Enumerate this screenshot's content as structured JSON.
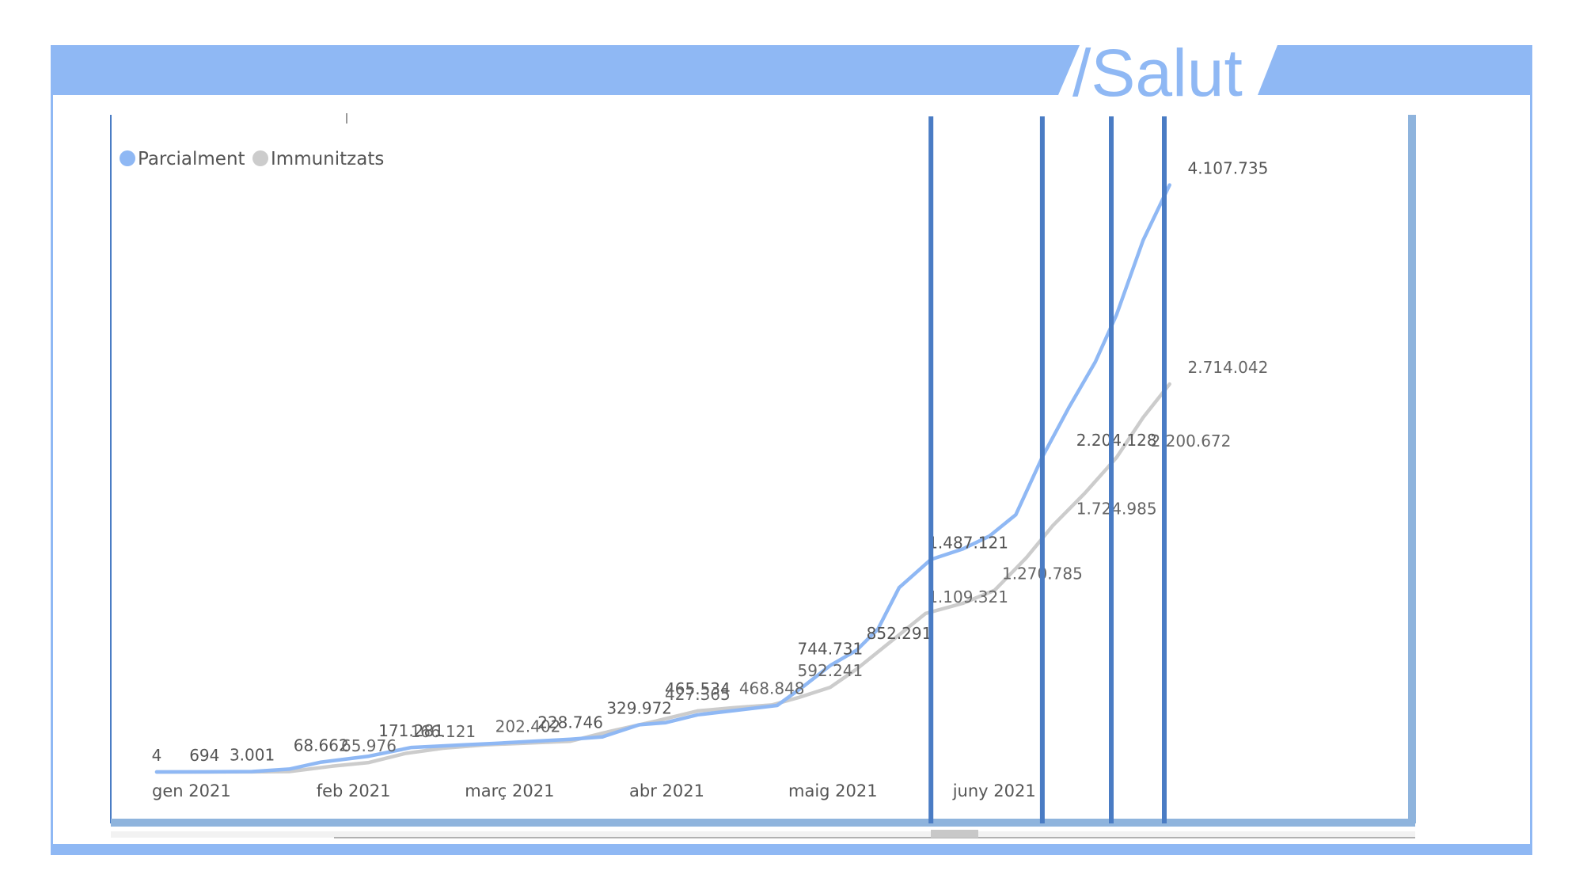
{
  "brand": {
    "text": "/Salut",
    "color": "#8fb8f4"
  },
  "chart_data": {
    "type": "line",
    "title": "",
    "xlabel": "",
    "ylabel": "",
    "x_ticks": [
      "gen 2021",
      "feb 2021",
      "març 2021",
      "abr 2021",
      "maig 2021",
      "juny 2021"
    ],
    "x_tick_dates": [
      "2021-01-01",
      "2021-02-01",
      "2021-03-01",
      "2021-04-01",
      "2021-05-01",
      "2021-06-01"
    ],
    "ylim": [
      0,
      4700000
    ],
    "grid": false,
    "legend": {
      "position": "top-left",
      "entries": [
        {
          "label": "Parcialment",
          "color": "#8fb8f4"
        },
        {
          "label": "Immunitzats",
          "color": "#cccccc"
        }
      ]
    },
    "series": [
      {
        "name": "Parcialment",
        "color": "#8fb8f4",
        "points": [
          [
            "2021-01-01",
            4
          ],
          [
            "2021-01-10",
            694
          ],
          [
            "2021-01-19",
            3001
          ],
          [
            "2021-01-26",
            20000
          ],
          [
            "2021-02-01",
            68662
          ],
          [
            "2021-02-10",
            110000
          ],
          [
            "2021-02-18",
            171281
          ],
          [
            "2021-02-28",
            190000
          ],
          [
            "2021-03-06",
            200000
          ],
          [
            "2021-03-13",
            215000
          ],
          [
            "2021-03-20",
            228746
          ],
          [
            "2021-03-26",
            245000
          ],
          [
            "2021-04-02",
            329972
          ],
          [
            "2021-04-07",
            345000
          ],
          [
            "2021-04-13",
            400000
          ],
          [
            "2021-04-20",
            430000
          ],
          [
            "2021-04-28",
            465534
          ],
          [
            "2021-05-03",
            600000
          ],
          [
            "2021-05-08",
            744731
          ],
          [
            "2021-05-13",
            852291
          ],
          [
            "2021-05-17",
            1000000
          ],
          [
            "2021-05-21",
            1290000
          ],
          [
            "2021-05-27",
            1487121
          ],
          [
            "2021-06-02",
            1560000
          ],
          [
            "2021-06-07",
            1650000
          ],
          [
            "2021-06-12",
            1800000
          ],
          [
            "2021-06-17",
            2204128
          ],
          [
            "2021-06-22",
            2550000
          ],
          [
            "2021-06-27",
            2870000
          ],
          [
            "2021-07-01",
            3200000
          ],
          [
            "2021-07-06",
            3720000
          ],
          [
            "2021-07-11",
            4107735
          ]
        ]
      },
      {
        "name": "Immunitzats",
        "color": "#cccccc",
        "points": [
          [
            "2021-01-01",
            4
          ],
          [
            "2021-01-19",
            694
          ],
          [
            "2021-01-26",
            3001
          ],
          [
            "2021-02-03",
            40000
          ],
          [
            "2021-02-10",
            65976
          ],
          [
            "2021-02-17",
            130000
          ],
          [
            "2021-02-24",
            166121
          ],
          [
            "2021-03-04",
            190000
          ],
          [
            "2021-03-12",
            202402
          ],
          [
            "2021-03-20",
            215000
          ],
          [
            "2021-03-27",
            280000
          ],
          [
            "2021-04-05",
            355000
          ],
          [
            "2021-04-13",
            427365
          ],
          [
            "2021-04-20",
            450000
          ],
          [
            "2021-04-27",
            468848
          ],
          [
            "2021-05-02",
            520000
          ],
          [
            "2021-05-08",
            592241
          ],
          [
            "2021-05-13",
            720000
          ],
          [
            "2021-05-19",
            900000
          ],
          [
            "2021-05-26",
            1109321
          ],
          [
            "2021-06-02",
            1180000
          ],
          [
            "2021-06-08",
            1270785
          ],
          [
            "2021-06-14",
            1500000
          ],
          [
            "2021-06-19",
            1724985
          ],
          [
            "2021-06-25",
            1950000
          ],
          [
            "2021-07-01",
            2200672
          ],
          [
            "2021-07-06",
            2480000
          ],
          [
            "2021-07-11",
            2714042
          ]
        ]
      }
    ],
    "data_labels": [
      {
        "series": "Parcialment",
        "x": "2021-01-01",
        "y": 4,
        "text": "4"
      },
      {
        "series": "Parcialment",
        "x": "2021-01-10",
        "y": 694,
        "text": "694"
      },
      {
        "series": "Parcialment",
        "x": "2021-01-19",
        "y": 3001,
        "text": "3.001"
      },
      {
        "series": "Parcialment",
        "x": "2021-02-01",
        "y": 68662,
        "text": "68.662"
      },
      {
        "series": "Immunitzats",
        "x": "2021-02-10",
        "y": 65976,
        "text": "65.976"
      },
      {
        "series": "Parcialment",
        "x": "2021-02-18",
        "y": 171281,
        "text": "171.281"
      },
      {
        "series": "Immunitzats",
        "x": "2021-02-24",
        "y": 166121,
        "text": "166.121"
      },
      {
        "series": "Immunitzats",
        "x": "2021-03-12",
        "y": 202402,
        "text": "202.402"
      },
      {
        "series": "Parcialment",
        "x": "2021-03-20",
        "y": 228746,
        "text": "228.746"
      },
      {
        "series": "Parcialment",
        "x": "2021-04-02",
        "y": 329972,
        "text": "329.972"
      },
      {
        "series": "Parcialment",
        "x": "2021-04-13",
        "y": 465534,
        "text": "465.534"
      },
      {
        "series": "Immunitzats",
        "x": "2021-04-13",
        "y": 427365,
        "text": "427.365"
      },
      {
        "series": "Immunitzats",
        "x": "2021-04-27",
        "y": 468848,
        "text": "468.848"
      },
      {
        "series": "Parcialment",
        "x": "2021-05-08",
        "y": 744731,
        "text": "744.731"
      },
      {
        "series": "Immunitzats",
        "x": "2021-05-08",
        "y": 592241,
        "text": "592.241"
      },
      {
        "series": "Parcialment",
        "x": "2021-05-21",
        "y": 852291,
        "text": "852.291"
      },
      {
        "series": "Parcialment",
        "x": "2021-06-03",
        "y": 1487121,
        "text": "1.487.121"
      },
      {
        "series": "Immunitzats",
        "x": "2021-06-03",
        "y": 1109321,
        "text": "1.109.321"
      },
      {
        "series": "Immunitzats",
        "x": "2021-06-17",
        "y": 1270785,
        "text": "1.270.785"
      },
      {
        "series": "Parcialment",
        "x": "2021-07-01",
        "y": 2204128,
        "text": "2.204.128"
      },
      {
        "series": "Immunitzats",
        "x": "2021-07-01",
        "y": 1724985,
        "text": "1.724.985"
      },
      {
        "series": "Immunitzats",
        "x": "2021-07-15",
        "y": 2200672,
        "text": "2.200.672"
      },
      {
        "series": "Parcialment",
        "x": "2021-07-22",
        "y": 4107735,
        "text": "4.107.735"
      },
      {
        "series": "Immunitzats",
        "x": "2021-07-22",
        "y": 2714042,
        "text": "2.714.042"
      }
    ],
    "markers": [
      "2021-05-27",
      "2021-06-17",
      "2021-06-30",
      "2021-07-10"
    ],
    "marker_color": "#4a7cc4"
  }
}
